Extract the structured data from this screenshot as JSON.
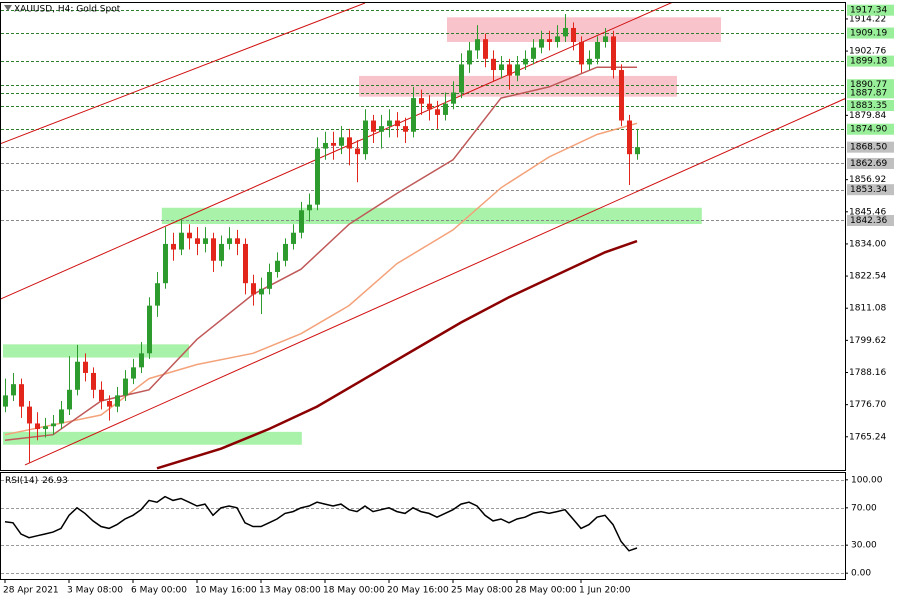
{
  "chart_data": {
    "type": "candlestick",
    "title": "XAUUSD, H4: Gold Spot",
    "up_color": "#2e9b2e",
    "down_color": "#e2261c",
    "ylim": [
      1753.4,
      1919.9
    ],
    "yticks": [
      1914.22,
      1902.76,
      1879.84,
      1856.92,
      1845.46,
      {
        "value": 1834.0,
        "label": "1834.00"
      },
      1822.54,
      1811.08,
      1799.62,
      1788.16,
      {
        "value": 1776.7,
        "label": "1776.70"
      },
      1765.24
    ],
    "xticks": [
      {
        "value": 0,
        "label": "28 Apr 2021"
      },
      {
        "value": 8,
        "label": "3 May 08:00"
      },
      {
        "value": 16,
        "label": "6 May 00:00"
      },
      {
        "value": 24,
        "label": "10 May 16:00"
      },
      {
        "value": 32,
        "label": "13 May 08:00"
      },
      {
        "value": 40,
        "label": "18 May 00:00"
      },
      {
        "value": 48,
        "label": "20 May 16:00"
      },
      {
        "value": 56,
        "label": "25 May 08:00"
      },
      {
        "value": 64,
        "label": "28 May 00:00"
      },
      {
        "value": 72,
        "label": "1 Jun 20:00"
      }
    ],
    "ohlc": [
      [
        1776,
        1786,
        1774,
        1780
      ],
      [
        1780,
        1788,
        1778,
        1784
      ],
      [
        1784,
        1786,
        1772,
        1776
      ],
      [
        1776,
        1778,
        1756,
        1770
      ],
      [
        1770,
        1774,
        1764,
        1768
      ],
      [
        1768,
        1772,
        1765,
        1769
      ],
      [
        1769,
        1773,
        1766,
        1770
      ],
      [
        1770,
        1778,
        1768,
        1775
      ],
      [
        1775,
        1794,
        1773,
        1782
      ],
      [
        1782,
        1798,
        1780,
        1792
      ],
      [
        1792,
        1795,
        1785,
        1788
      ],
      [
        1788,
        1790,
        1779,
        1782
      ],
      [
        1782,
        1785,
        1775,
        1778
      ],
      [
        1778,
        1780,
        1771,
        1776
      ],
      [
        1776,
        1783,
        1774,
        1780
      ],
      [
        1780,
        1789,
        1778,
        1786
      ],
      [
        1786,
        1793,
        1784,
        1790
      ],
      [
        1790,
        1799,
        1788,
        1795
      ],
      [
        1795,
        1815,
        1793,
        1812
      ],
      [
        1812,
        1824,
        1808,
        1820
      ],
      [
        1820,
        1840,
        1818,
        1834
      ],
      [
        1834,
        1838,
        1828,
        1832
      ],
      [
        1832,
        1843,
        1830,
        1838
      ],
      [
        1838,
        1841,
        1832,
        1836
      ],
      [
        1836,
        1840,
        1830,
        1834
      ],
      [
        1834,
        1840,
        1831,
        1836
      ],
      [
        1836,
        1838,
        1824,
        1828
      ],
      [
        1828,
        1837,
        1826,
        1834
      ],
      [
        1834,
        1840,
        1832,
        1836
      ],
      [
        1836,
        1839,
        1830,
        1834
      ],
      [
        1834,
        1836,
        1816,
        1820
      ],
      [
        1820,
        1823,
        1812,
        1816
      ],
      [
        1816,
        1822,
        1809,
        1818
      ],
      [
        1818,
        1827,
        1816,
        1824
      ],
      [
        1824,
        1831,
        1822,
        1828
      ],
      [
        1828,
        1836,
        1826,
        1834
      ],
      [
        1834,
        1841,
        1832,
        1838
      ],
      [
        1838,
        1849,
        1836,
        1846
      ],
      [
        1846,
        1852,
        1842,
        1848
      ],
      [
        1848,
        1872,
        1846,
        1868
      ],
      [
        1868,
        1874,
        1864,
        1870
      ],
      [
        1870,
        1874,
        1864,
        1869
      ],
      [
        1869,
        1876,
        1866,
        1872
      ],
      [
        1872,
        1875,
        1862,
        1868
      ],
      [
        1868,
        1871,
        1856,
        1866
      ],
      [
        1866,
        1882,
        1864,
        1878
      ],
      [
        1878,
        1880,
        1870,
        1874
      ],
      [
        1874,
        1880,
        1868,
        1876
      ],
      [
        1876,
        1882,
        1872,
        1878
      ],
      [
        1878,
        1881,
        1872,
        1876
      ],
      [
        1876,
        1879,
        1870,
        1874
      ],
      [
        1874,
        1890,
        1872,
        1886
      ],
      [
        1886,
        1889,
        1880,
        1884
      ],
      [
        1884,
        1887,
        1878,
        1882
      ],
      [
        1882,
        1885,
        1875,
        1880
      ],
      [
        1880,
        1888,
        1878,
        1884
      ],
      [
        1884,
        1892,
        1882,
        1888
      ],
      [
        1888,
        1902,
        1886,
        1898
      ],
      [
        1898,
        1906,
        1895,
        1903
      ],
      [
        1903,
        1912,
        1900,
        1907
      ],
      [
        1907,
        1909,
        1897,
        1900
      ],
      [
        1900,
        1903,
        1892,
        1896
      ],
      [
        1896,
        1901,
        1893,
        1898
      ],
      [
        1898,
        1900,
        1889,
        1894
      ],
      [
        1894,
        1901,
        1892,
        1898
      ],
      [
        1898,
        1903,
        1896,
        1900
      ],
      [
        1900,
        1907,
        1898,
        1904
      ],
      [
        1904,
        1910,
        1902,
        1907
      ],
      [
        1907,
        1910,
        1903,
        1906
      ],
      [
        1906,
        1912,
        1904,
        1908
      ],
      [
        1908,
        1916,
        1906,
        1911
      ],
      [
        1911,
        1913,
        1903,
        1906
      ],
      [
        1906,
        1908,
        1895,
        1898
      ],
      [
        1898,
        1903,
        1896,
        1900
      ],
      [
        1900,
        1908,
        1898,
        1906
      ],
      [
        1906,
        1911,
        1904,
        1908
      ],
      [
        1908,
        1910,
        1893,
        1896
      ],
      [
        1896,
        1898,
        1876,
        1878
      ],
      [
        1878,
        1880,
        1855,
        1866
      ],
      [
        1866,
        1875,
        1864,
        1868.5
      ]
    ],
    "moving_averages": [
      {
        "color": "#8b0000",
        "width": 2.5,
        "x": [
          19,
          27,
          33,
          39,
          45,
          51,
          57,
          63,
          69,
          75,
          79
        ],
        "values": [
          1754,
          1761,
          1768,
          1776,
          1786,
          1796,
          1806,
          1815,
          1823,
          1831,
          1835
        ]
      },
      {
        "color": "#f4a27a",
        "width": 1.5,
        "x": [
          0,
          12,
          18,
          24,
          31,
          37,
          43,
          49,
          56,
          62,
          68,
          74,
          79
        ],
        "values": [
          1766,
          1773,
          1786,
          1791,
          1795,
          1802,
          1812,
          1827,
          1839,
          1854,
          1865,
          1873,
          1877
        ]
      },
      {
        "color": "#c05a5a",
        "width": 1.5,
        "x": [
          0,
          6,
          12,
          18,
          24,
          31,
          37,
          43,
          49,
          56,
          62,
          68,
          74,
          79
        ],
        "values": [
          1764,
          1766,
          1778,
          1782,
          1800,
          1816,
          1825,
          1841,
          1852,
          1864,
          1886,
          1890,
          1897,
          1897
        ]
      }
    ],
    "trendlines": [
      {
        "color": "#d01010",
        "x": [
          -0.6,
          45
        ],
        "values": [
          1869.7,
          1919.9
        ]
      },
      {
        "color": "#d01010",
        "x": [
          -0.6,
          83.7
        ],
        "values": [
          1814.3,
          1920.5
        ]
      },
      {
        "color": "#d01010",
        "x": [
          2.5,
          105
        ],
        "values": [
          1755.2,
          1885.8
        ]
      }
    ],
    "zones": [
      {
        "color": "#f7b9c2",
        "x": [
          55.25,
          89.5
        ],
        "range": [
          1906.0,
          1914.8
        ]
      },
      {
        "color": "#f7b9c2",
        "x": [
          44.25,
          84
        ],
        "range": [
          1886.5,
          1893.9
        ]
      },
      {
        "color": "#9af09a",
        "x": [
          19.6,
          87.1
        ],
        "range": [
          1841.1,
          1846.9
        ]
      },
      {
        "color": "#9af09a",
        "x": [
          -0.25,
          23
        ],
        "range": [
          1793.5,
          1798.2
        ]
      },
      {
        "color": "#9af09a",
        "x": [
          -0.25,
          37.1
        ],
        "range": [
          1762.4,
          1767.0
        ]
      }
    ],
    "levels": [
      {
        "value": 1917.34,
        "color": "#9af09a"
      },
      {
        "value": 1909.19,
        "color": "#9af09a"
      },
      {
        "value": 1899.18,
        "color": "#9af09a"
      },
      {
        "value": 1890.77,
        "color": "#9af09a"
      },
      {
        "value": 1887.87,
        "color": "#9af09a"
      },
      {
        "value": 1883.35,
        "color": "#9af09a"
      },
      {
        "value": 1874.9,
        "label": "1874.90",
        "color": "#9af09a"
      },
      {
        "value": 1868.5,
        "label": "1868.50",
        "color": "#c0c0c0"
      },
      {
        "value": 1862.69,
        "color": "#c0c0c0"
      },
      {
        "value": 1853.34,
        "color": "#c0c0c0"
      },
      {
        "value": 1842.36,
        "color": "#c0c0c0"
      }
    ],
    "rsi": {
      "title": "RSI(14)",
      "current": 26.93,
      "color": "#000000",
      "ylim": [
        -7.3,
        107.3
      ],
      "yticks": [
        {
          "value": 100,
          "label": "100.00"
        },
        {
          "value": 70,
          "label": "70.00"
        },
        {
          "value": 30,
          "label": "30.00"
        },
        {
          "value": 0,
          "label": "0.00"
        }
      ],
      "values": [
        55,
        54,
        42,
        38,
        40,
        42,
        44,
        48,
        62,
        70,
        64,
        56,
        50,
        48,
        52,
        58,
        62,
        68,
        78,
        76,
        82,
        78,
        80,
        76,
        72,
        74,
        62,
        70,
        72,
        70,
        54,
        50,
        50,
        54,
        58,
        64,
        66,
        70,
        72,
        76,
        74,
        72,
        74,
        68,
        66,
        72,
        66,
        68,
        70,
        66,
        64,
        70,
        66,
        64,
        60,
        64,
        68,
        74,
        76,
        72,
        62,
        56,
        58,
        54,
        58,
        60,
        64,
        66,
        64,
        66,
        68,
        58,
        48,
        52,
        60,
        62,
        52,
        34,
        24,
        26.93
      ]
    }
  }
}
